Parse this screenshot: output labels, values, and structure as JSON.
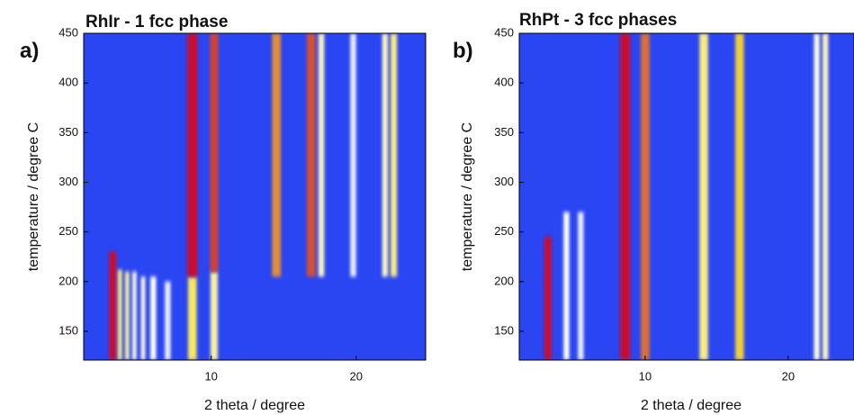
{
  "chart_data": [
    {
      "type": "heatmap",
      "panel": "a)",
      "title": "RhIr - 1 fcc phase",
      "x_label": "2 theta / degree",
      "y_label": "temperature / degree C",
      "xlim": [
        1.2,
        24.8
      ],
      "ylim": [
        121,
        450
      ],
      "xticks": [
        10,
        20
      ],
      "yticks": [
        150,
        200,
        250,
        300,
        350,
        400,
        450
      ],
      "colormap": [
        "#2a46f2",
        "#ffffff",
        "#f5e23a",
        "#c8102e"
      ],
      "peaks": [
        {
          "x": 3.2,
          "ymin": 121,
          "ymax": 230,
          "intensity": 1.0,
          "width": 0.25
        },
        {
          "x": 3.7,
          "ymin": 121,
          "ymax": 212,
          "intensity": 0.55,
          "width": 0.15
        },
        {
          "x": 4.2,
          "ymin": 121,
          "ymax": 210,
          "intensity": 0.5,
          "width": 0.15
        },
        {
          "x": 4.7,
          "ymin": 121,
          "ymax": 210,
          "intensity": 0.4,
          "width": 0.15
        },
        {
          "x": 5.3,
          "ymin": 121,
          "ymax": 205,
          "intensity": 0.4,
          "width": 0.15
        },
        {
          "x": 6.0,
          "ymin": 121,
          "ymax": 205,
          "intensity": 0.35,
          "width": 0.2
        },
        {
          "x": 7.0,
          "ymin": 121,
          "ymax": 200,
          "intensity": 0.3,
          "width": 0.2
        },
        {
          "x": 8.7,
          "ymin": 121,
          "ymax": 205,
          "intensity": 0.6,
          "width": 0.3
        },
        {
          "x": 8.7,
          "ymin": 205,
          "ymax": 450,
          "intensity": 1.0,
          "width": 0.35
        },
        {
          "x": 10.2,
          "ymin": 121,
          "ymax": 210,
          "intensity": 0.5,
          "width": 0.25
        },
        {
          "x": 10.2,
          "ymin": 210,
          "ymax": 450,
          "intensity": 0.92,
          "width": 0.28
        },
        {
          "x": 14.5,
          "ymin": 205,
          "ymax": 450,
          "intensity": 0.8,
          "width": 0.3
        },
        {
          "x": 16.9,
          "ymin": 205,
          "ymax": 450,
          "intensity": 0.9,
          "width": 0.3
        },
        {
          "x": 17.6,
          "ymin": 205,
          "ymax": 450,
          "intensity": 0.45,
          "width": 0.2
        },
        {
          "x": 19.8,
          "ymin": 205,
          "ymax": 450,
          "intensity": 0.3,
          "width": 0.2
        },
        {
          "x": 22.0,
          "ymin": 205,
          "ymax": 450,
          "intensity": 0.45,
          "width": 0.2
        },
        {
          "x": 22.6,
          "ymin": 205,
          "ymax": 450,
          "intensity": 0.55,
          "width": 0.22
        }
      ]
    },
    {
      "type": "heatmap",
      "panel": "b)",
      "title": "RhPt - 3 fcc phases",
      "x_label": "2 theta / degree",
      "y_label": "temperature / degree C",
      "xlim": [
        1.2,
        24.6
      ],
      "ylim": [
        121,
        450
      ],
      "xticks": [
        10,
        20
      ],
      "yticks": [
        150,
        200,
        250,
        300,
        350,
        400,
        450
      ],
      "colormap": [
        "#2a46f2",
        "#ffffff",
        "#f5e23a",
        "#c8102e"
      ],
      "peaks": [
        {
          "x": 3.2,
          "ymin": 121,
          "ymax": 245,
          "intensity": 1.0,
          "width": 0.25
        },
        {
          "x": 4.5,
          "ymin": 121,
          "ymax": 270,
          "intensity": 0.35,
          "width": 0.2
        },
        {
          "x": 5.5,
          "ymin": 121,
          "ymax": 270,
          "intensity": 0.3,
          "width": 0.2
        },
        {
          "x": 8.6,
          "ymin": 121,
          "ymax": 450,
          "intensity": 1.0,
          "width": 0.35
        },
        {
          "x": 10.0,
          "ymin": 121,
          "ymax": 450,
          "intensity": 0.85,
          "width": 0.3
        },
        {
          "x": 14.1,
          "ymin": 121,
          "ymax": 450,
          "intensity": 0.55,
          "width": 0.3
        },
        {
          "x": 16.6,
          "ymin": 121,
          "ymax": 450,
          "intensity": 0.7,
          "width": 0.3
        },
        {
          "x": 22.0,
          "ymin": 121,
          "ymax": 450,
          "intensity": 0.4,
          "width": 0.2
        },
        {
          "x": 22.6,
          "ymin": 121,
          "ymax": 450,
          "intensity": 0.45,
          "width": 0.2
        }
      ]
    }
  ]
}
